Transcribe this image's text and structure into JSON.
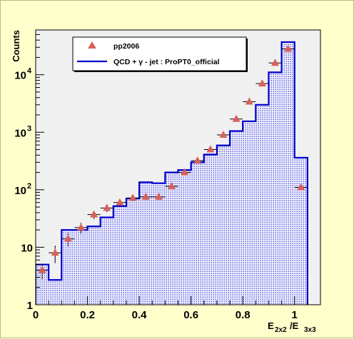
{
  "colors": {
    "background": "#ffffcc",
    "frame": "#f0f0f0",
    "mc_line": "#0000cc",
    "mc_fill_dot": "#2a2ad0",
    "data_marker": "#d9605a"
  },
  "chart_data": {
    "type": "bar",
    "title": "",
    "xlabel_main": "E",
    "xlabel_num_sub": "2x2",
    "xlabel_sep": "/E",
    "xlabel_den_sub": "3x3",
    "ylabel": "Counts",
    "xlim": [
      0,
      1.1
    ],
    "ylim": [
      1,
      60000
    ],
    "yscale": "log",
    "grid": false,
    "legend_position": "top-left",
    "x_ticks": [
      {
        "value": 0,
        "label": "0"
      },
      {
        "value": 0.2,
        "label": "0.2"
      },
      {
        "value": 0.4,
        "label": "0.4"
      },
      {
        "value": 0.6,
        "label": "0.6"
      },
      {
        "value": 0.8,
        "label": "0.8"
      },
      {
        "value": 1.0,
        "label": "1"
      }
    ],
    "y_ticks": [
      {
        "value": 1,
        "base": "1",
        "exp": ""
      },
      {
        "value": 10,
        "base": "10",
        "exp": ""
      },
      {
        "value": 100,
        "base": "10",
        "exp": "2"
      },
      {
        "value": 1000,
        "base": "10",
        "exp": "3"
      },
      {
        "value": 10000,
        "base": "10",
        "exp": "4"
      }
    ],
    "bin_edges": [
      0,
      0.05,
      0.1,
      0.15,
      0.2,
      0.25,
      0.3,
      0.35,
      0.4,
      0.45,
      0.5,
      0.55,
      0.6,
      0.65,
      0.7,
      0.75,
      0.8,
      0.85,
      0.9,
      0.95,
      1.0,
      1.05
    ],
    "series": [
      {
        "name": "QCD + γ - jet : ProPT0_official",
        "style": "histogram",
        "values": [
          5,
          2.7,
          20,
          20,
          23,
          33,
          52,
          70,
          135,
          130,
          200,
          220,
          300,
          410,
          590,
          1050,
          1550,
          3000,
          11000,
          37000,
          360
        ]
      },
      {
        "name": "pp2006",
        "style": "markers",
        "x": [
          0.025,
          0.075,
          0.125,
          0.175,
          0.225,
          0.275,
          0.325,
          0.375,
          0.425,
          0.475,
          0.525,
          0.575,
          0.625,
          0.675,
          0.725,
          0.775,
          0.825,
          0.875,
          0.925,
          0.975,
          1.025
        ],
        "values": [
          4,
          8,
          14,
          22,
          37,
          48,
          60,
          72,
          75,
          75,
          115,
          200,
          320,
          500,
          900,
          1700,
          3400,
          7000,
          16000,
          28000,
          110
        ],
        "errors": [
          1.2,
          2.7,
          3.7,
          4.7,
          6,
          7,
          7.7,
          8.5,
          8.7,
          8.7,
          10.7,
          14,
          18,
          22,
          30,
          41,
          58,
          84,
          126,
          167,
          10.5
        ]
      }
    ]
  }
}
